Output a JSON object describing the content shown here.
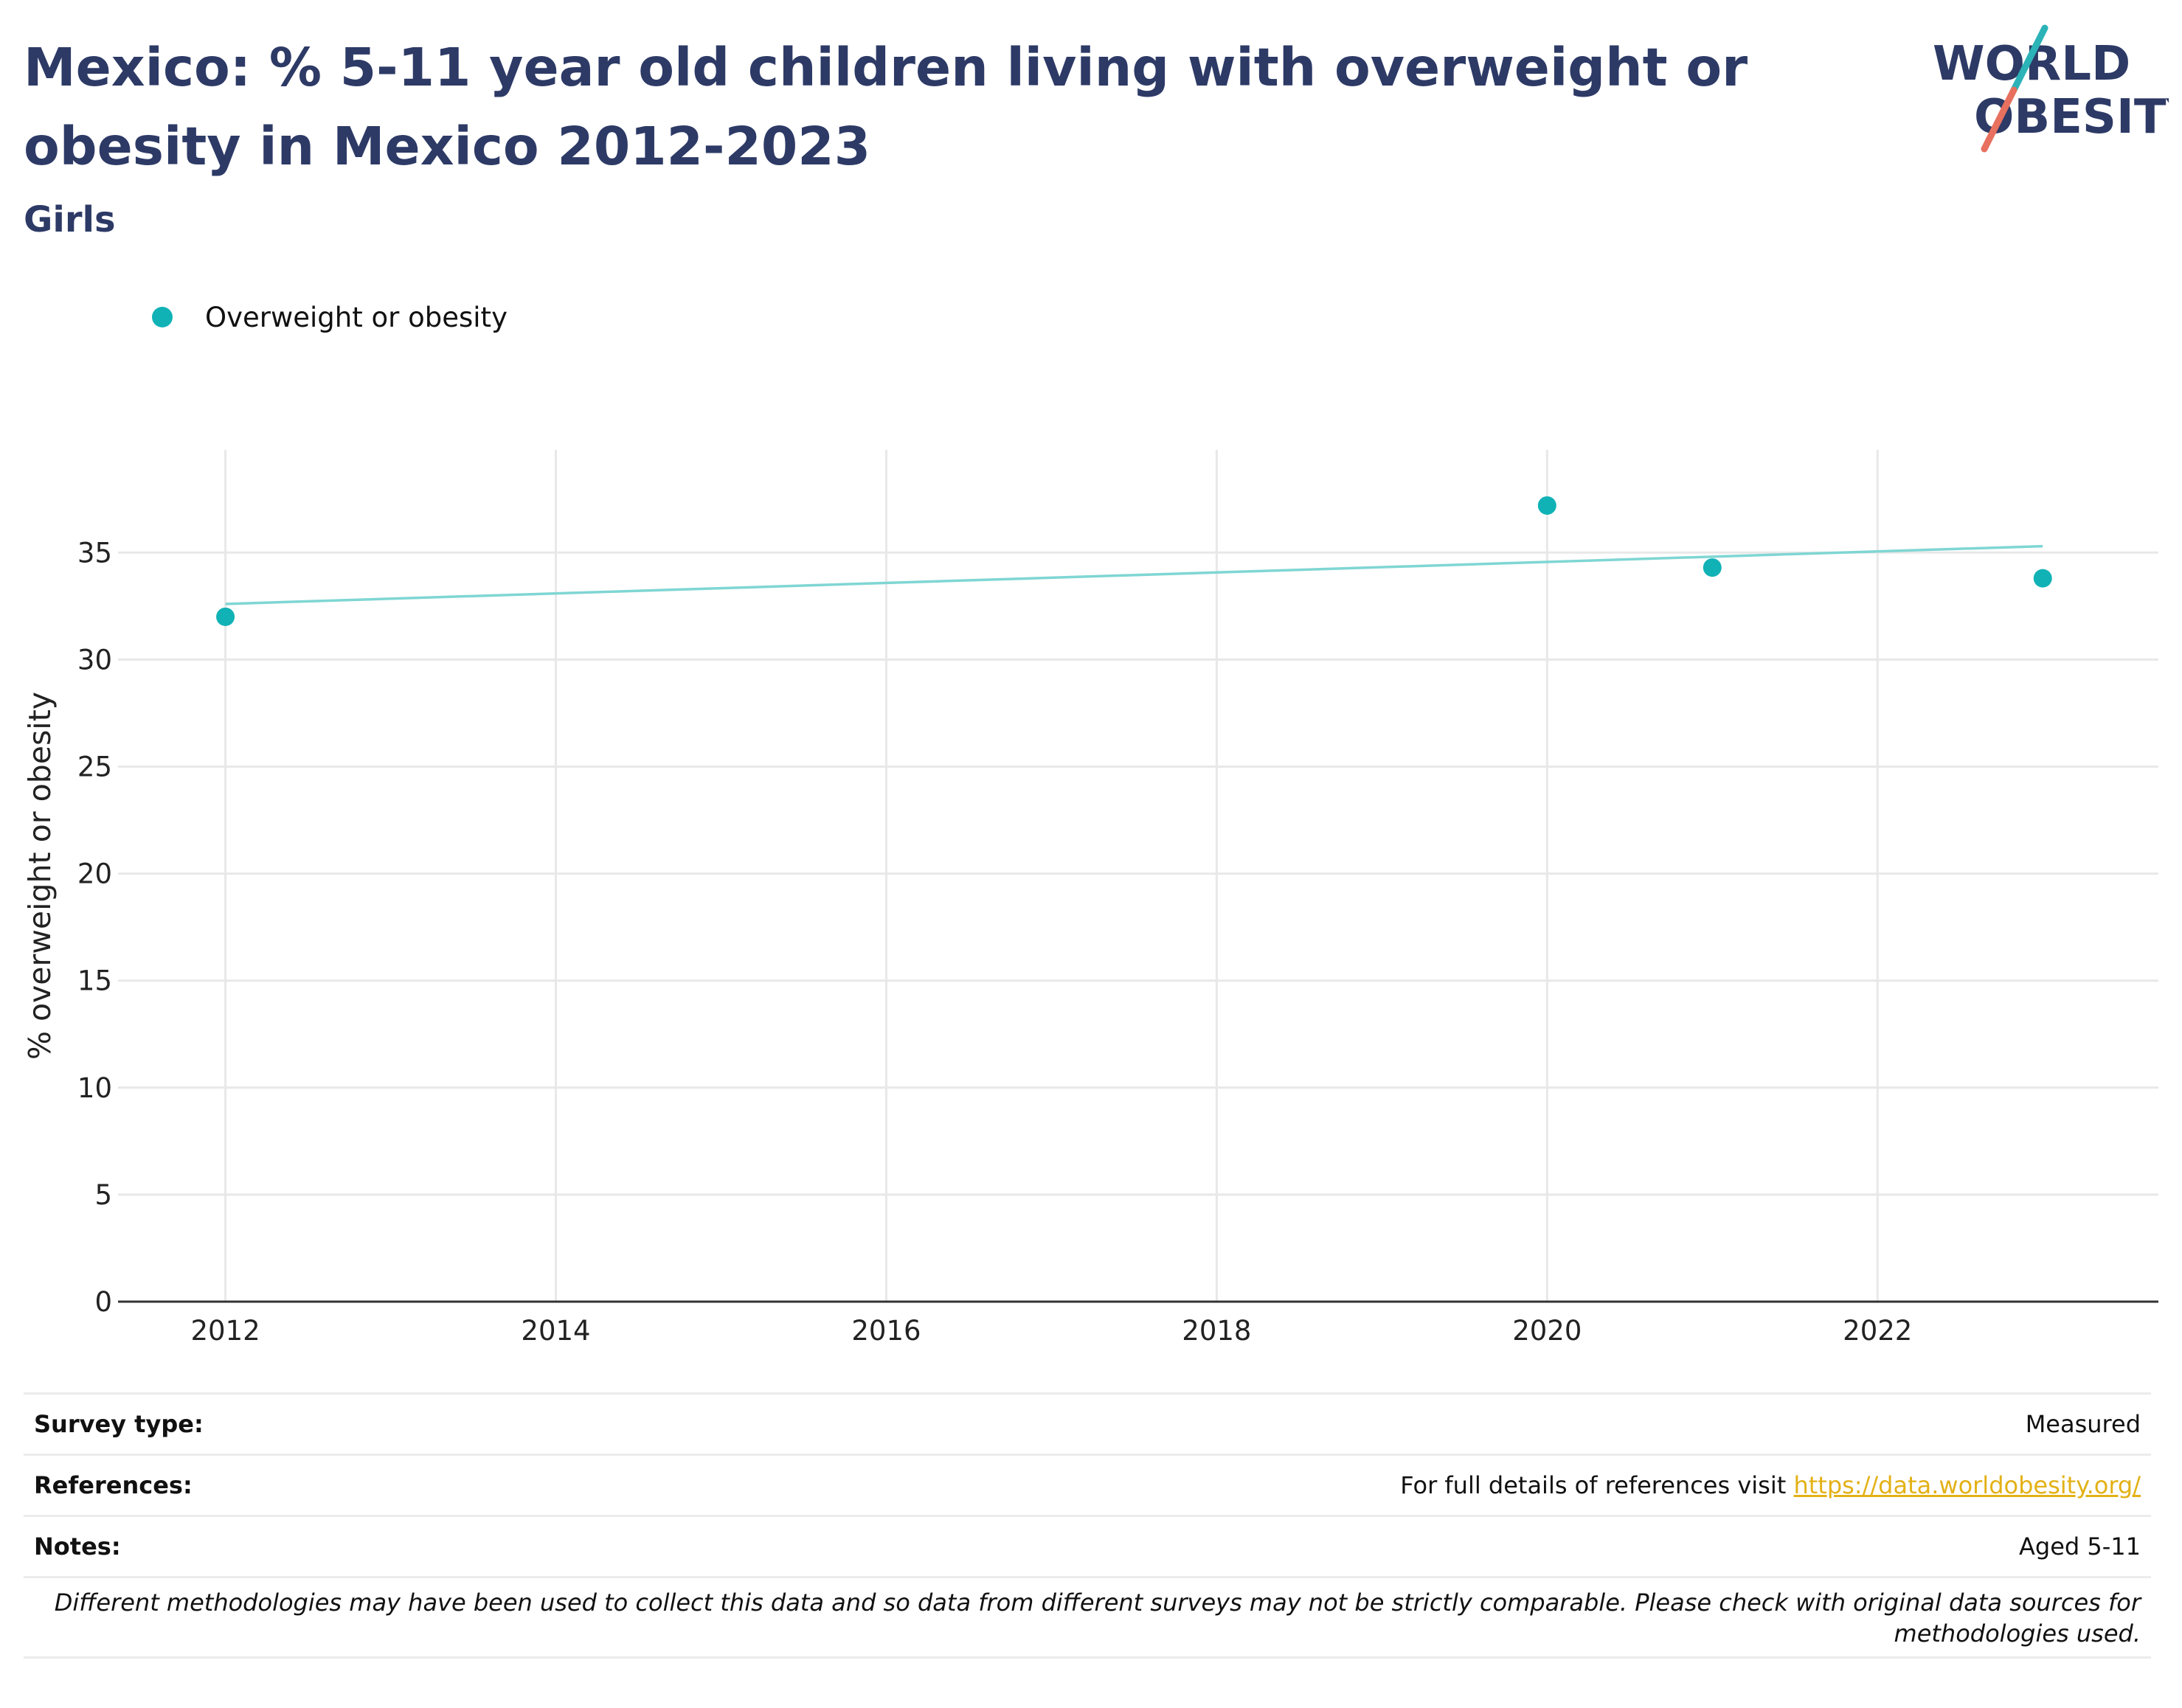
{
  "header": {
    "title": "Mexico: % 5-11 year old children living with overweight or obesity in Mexico 2012-2023",
    "subtitle": "Girls"
  },
  "logo": {
    "line1": "WORLD",
    "line2": "OBESITY",
    "colors": {
      "text": "#2d3a66",
      "accent_teal": "#2bb3b8",
      "accent_red": "#e8705f"
    }
  },
  "chart_data": {
    "type": "scatter",
    "title": "",
    "xlabel": "",
    "ylabel": "% overweight or obesity",
    "x_ticks": [
      "2012",
      "2014",
      "2016",
      "2018",
      "2020",
      "2022"
    ],
    "y_ticks": [
      "0",
      "5",
      "10",
      "15",
      "20",
      "25",
      "30",
      "35"
    ],
    "xlim": [
      2011.35,
      2023.7
    ],
    "ylim": [
      0,
      39.8
    ],
    "grid": true,
    "legend_position": "top-left",
    "series": [
      {
        "name": "Overweight or obesity",
        "color": "#10b2b6",
        "points": [
          {
            "x": 2012,
            "y": 32.0
          },
          {
            "x": 2020,
            "y": 37.2
          },
          {
            "x": 2021,
            "y": 34.3
          },
          {
            "x": 2023,
            "y": 33.8
          }
        ]
      }
    ],
    "trendline": {
      "color": "#7fd6d3",
      "start": {
        "x": 2012,
        "y": 32.6
      },
      "end": {
        "x": 2023,
        "y": 35.3
      }
    }
  },
  "info": {
    "survey_type_label": "Survey type:",
    "survey_type_value": "Measured",
    "references_label": "References:",
    "references_text": "For full details of references visit ",
    "references_link": "https://data.worldobesity.org/",
    "notes_label": "Notes:",
    "notes_value": "Aged 5-11",
    "disclaimer": "Different methodologies may have been used to collect this data and so data from different surveys may not be strictly comparable. Please check with original data sources for methodologies used."
  }
}
